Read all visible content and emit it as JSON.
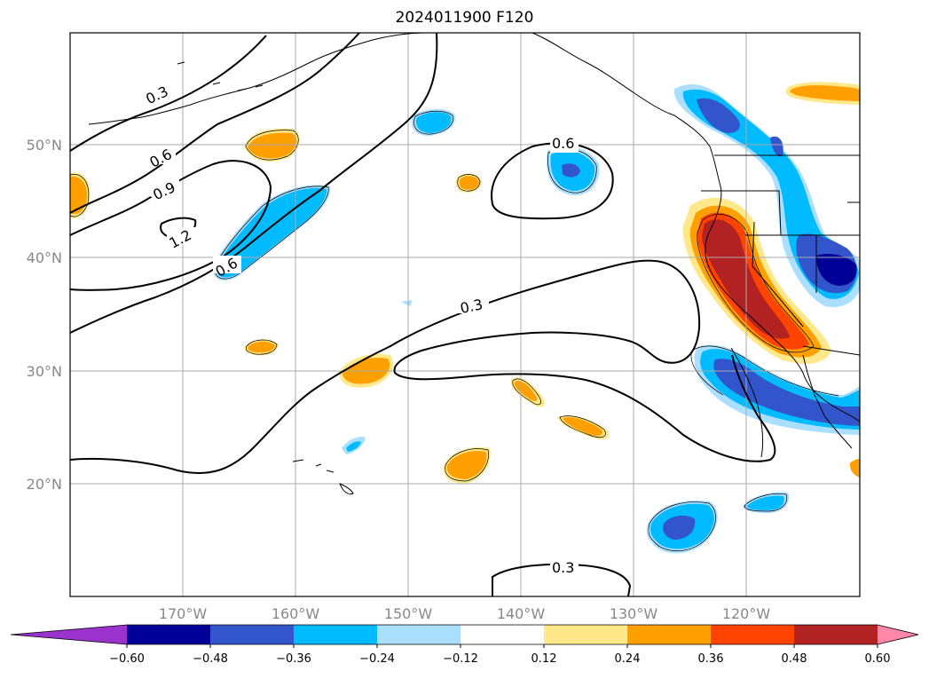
{
  "title": "2024011900 F120",
  "grid": true,
  "lon_labels": [
    "170°W",
    "160°W",
    "150°W",
    "140°W",
    "130°W",
    "120°W"
  ],
  "lat_labels": [
    "50°N",
    "40°N",
    "30°N",
    "20°N"
  ],
  "contour_labels": [
    "0.3",
    "0.6",
    "0.9",
    "1.2",
    "0.6",
    "0.6",
    "0.3",
    "0.3"
  ],
  "colorbar": {
    "ticks": [
      "−0.60",
      "−0.48",
      "−0.36",
      "−0.24",
      "−0.12",
      "0.12",
      "0.24",
      "0.36",
      "0.48",
      "0.60"
    ],
    "colors": {
      "under": "#9933cc",
      "levels": [
        "#000099",
        "#3355cc",
        "#00bbff",
        "#aadfff",
        "#ffffff",
        "#ffe88a",
        "#ffa000",
        "#ff4400",
        "#b22222"
      ],
      "over": "#ff88aa"
    }
  }
}
